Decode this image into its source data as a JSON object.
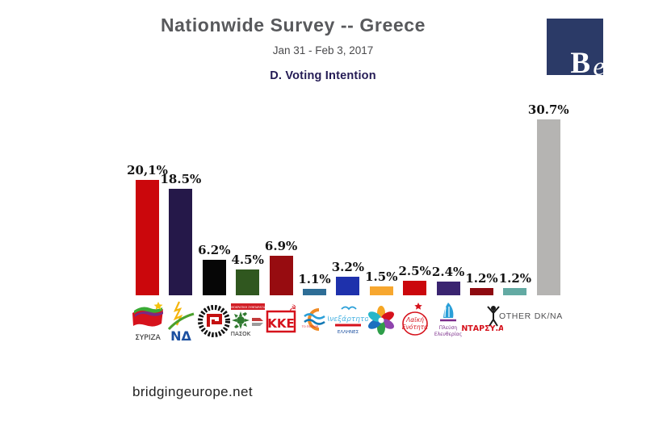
{
  "header": {
    "title": "Nationwide Survey -- Greece",
    "subtitle": "Jan 31 - Feb 3, 2017",
    "section_label": "D. Voting Intention"
  },
  "brand": {
    "letter_b": "B",
    "letter_e": "e",
    "box_color": "#2b3a67"
  },
  "footer": {
    "website": "bridgingeurope.net"
  },
  "chart_data": {
    "type": "bar",
    "title": "D. Voting Intention",
    "subtitle": "Jan 31 - Feb 3, 2017",
    "unit": "percent of respondents",
    "ylim": [
      0,
      32
    ],
    "grid": false,
    "legend": "none",
    "categories": [
      "SYRIZA",
      "New Democracy",
      "Golden Dawn",
      "Democratic Alignment (PASOK)",
      "KKE",
      "To Potami",
      "Independent Greeks (ANEL)",
      "Union of Centrists",
      "Popular Unity",
      "Plefsi Eleftherias",
      "ANTARSYA",
      "Other",
      "DK/NA"
    ],
    "values": [
      20.1,
      18.5,
      6.2,
      4.5,
      6.9,
      1.1,
      3.2,
      1.5,
      2.5,
      2.4,
      1.2,
      1.2,
      30.7
    ],
    "parties": [
      {
        "id": "syriza",
        "name": "SYRIZA",
        "value": 20.1,
        "display_label": "20,1%",
        "color": "#cb070c",
        "logo_texts": [
          "ΣΥΡΙΖΑ"
        ]
      },
      {
        "id": "nd",
        "name": "New Democracy",
        "value": 18.5,
        "display_label": "18.5%",
        "color": "#251849",
        "logo_texts": [
          "ΝΔ"
        ]
      },
      {
        "id": "xa",
        "name": "Golden Dawn",
        "value": 6.2,
        "display_label": "6.2%",
        "color": "#060606",
        "logo_texts": []
      },
      {
        "id": "pasok",
        "name": "Democratic Alignment (PASOK)",
        "value": 4.5,
        "display_label": "4.5%",
        "color": "#30571f",
        "logo_texts": [
          "ΔΗΜΟΚΡΑΤΙΚΗ ΣΥΜΠΑΡΑΤΑΞΗ",
          "ΠΑΣΟΚ"
        ]
      },
      {
        "id": "kke",
        "name": "KKE",
        "value": 6.9,
        "display_label": "6.9%",
        "color": "#970c10",
        "logo_texts": [
          "ΚΚΕ"
        ]
      },
      {
        "id": "potami",
        "name": "To Potami",
        "value": 1.1,
        "display_label": "1.1%",
        "color": "#2e6d96",
        "logo_texts": [
          "ΤΟ ΠΟΤΑΜΙ"
        ]
      },
      {
        "id": "anel",
        "name": "Independent Greeks (ANEL)",
        "value": 3.2,
        "display_label": "3.2%",
        "color": "#1e31ac",
        "logo_texts": [
          "Ανεξάρτητοι",
          "ΕΛΛΗΝΕΣ"
        ]
      },
      {
        "id": "centrists",
        "name": "Union of Centrists",
        "value": 1.5,
        "display_label": "1.5%",
        "color": "#f7a72f",
        "logo_texts": []
      },
      {
        "id": "laiki",
        "name": "Popular Unity",
        "value": 2.5,
        "display_label": "2.5%",
        "color": "#cb070c",
        "logo_texts": [
          "Λαϊκή",
          "Ενότητα"
        ]
      },
      {
        "id": "plefsi",
        "name": "Plefsi Eleftherias",
        "value": 2.4,
        "display_label": "2.4%",
        "color": "#3a2470",
        "logo_texts": [
          "Πλεύση",
          "Ελευθερίας"
        ]
      },
      {
        "id": "antarsya",
        "name": "ANTARSYA",
        "value": 1.2,
        "display_label": "1.2%",
        "color": "#8e0a10",
        "logo_texts": [
          "ΑΝΤΑΡΣΥ.Α."
        ]
      },
      {
        "id": "other",
        "name": "Other",
        "value": 1.2,
        "display_label": "1.2%",
        "color": "#63aaa3",
        "tick_text": "OTHER"
      },
      {
        "id": "dkna",
        "name": "DK/NA",
        "value": 30.7,
        "display_label": "30.7%",
        "color": "#b5b4b2",
        "tick_text": "DK/NA"
      }
    ]
  }
}
